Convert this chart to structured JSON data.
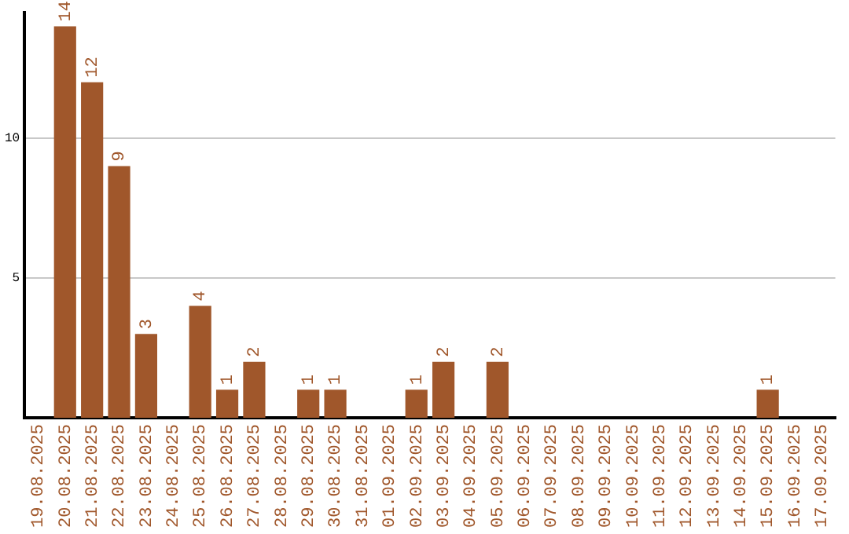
{
  "chart_data": {
    "type": "bar",
    "categories": [
      "19.08.2025",
      "20.08.2025",
      "21.08.2025",
      "22.08.2025",
      "23.08.2025",
      "24.08.2025",
      "25.08.2025",
      "26.08.2025",
      "27.08.2025",
      "28.08.2025",
      "29.08.2025",
      "30.08.2025",
      "31.08.2025",
      "01.09.2025",
      "02.09.2025",
      "03.09.2025",
      "04.09.2025",
      "05.09.2025",
      "06.09.2025",
      "07.09.2025",
      "08.09.2025",
      "09.09.2025",
      "10.09.2025",
      "11.09.2025",
      "12.09.2025",
      "13.09.2025",
      "14.09.2025",
      "15.09.2025",
      "16.09.2025",
      "17.09.2025"
    ],
    "values": [
      0,
      14,
      12,
      9,
      3,
      0,
      4,
      1,
      2,
      0,
      1,
      1,
      0,
      0,
      1,
      2,
      0,
      2,
      0,
      0,
      0,
      0,
      0,
      0,
      0,
      0,
      0,
      1,
      0,
      0
    ],
    "value_labels": [
      null,
      "14",
      "12",
      "9",
      "3",
      null,
      "4",
      "1",
      "2",
      null,
      "1",
      "1",
      null,
      null,
      "1",
      "2",
      null,
      "2",
      null,
      null,
      null,
      null,
      null,
      null,
      null,
      null,
      null,
      "1",
      null,
      null
    ],
    "color": "#a0572b",
    "ylim": [
      0,
      14.5
    ],
    "yticks": [
      5,
      10
    ],
    "grid": "y",
    "legend": false
  }
}
